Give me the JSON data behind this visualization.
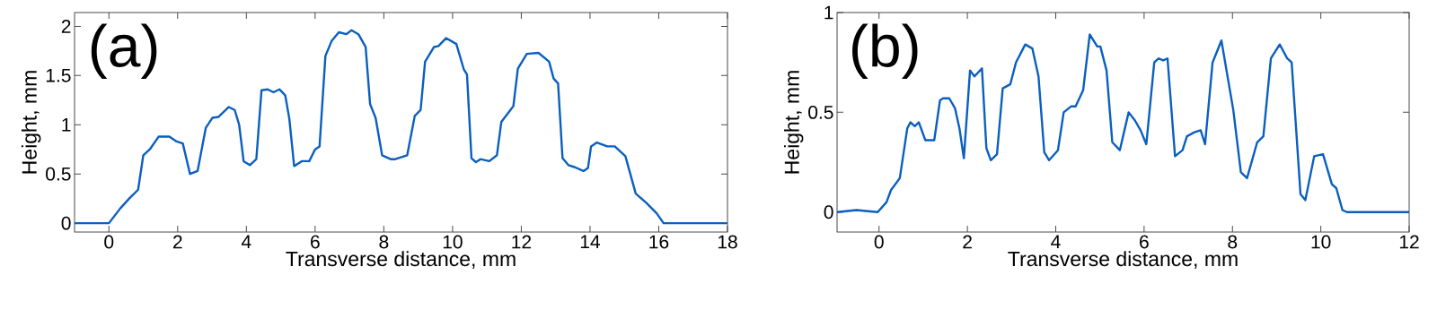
{
  "chart_data": [
    {
      "type": "line",
      "xlabel": "Transverse distance, mm",
      "ylabel": "Height, mm",
      "annotations": [
        "(a)"
      ],
      "xlim": [
        -1,
        18
      ],
      "ylim": [
        -0.09,
        2.14
      ],
      "xticks": [
        0,
        2,
        4,
        6,
        8,
        10,
        12,
        14,
        16,
        18
      ],
      "yticks": [
        0,
        0.5,
        1,
        1.5,
        2
      ],
      "series": [
        {
          "color": "#0a5fbf",
          "x": [
            -1,
            0,
            0.33,
            0.59,
            0.85,
            1.0,
            1.19,
            1.45,
            1.76,
            1.97,
            2.15,
            2.36,
            2.58,
            2.82,
            3.01,
            3.19,
            3.49,
            3.66,
            3.79,
            3.92,
            4.1,
            4.29,
            4.44,
            4.62,
            4.79,
            4.96,
            5.13,
            5.25,
            5.39,
            5.61,
            5.83,
            6.0,
            6.13,
            6.3,
            6.48,
            6.69,
            6.91,
            7.06,
            7.26,
            7.47,
            7.6,
            7.76,
            7.95,
            8.2,
            8.33,
            8.68,
            8.9,
            9.07,
            9.2,
            9.46,
            9.59,
            9.81,
            10.11,
            10.33,
            10.42,
            10.55,
            10.68,
            10.81,
            11.07,
            11.29,
            11.42,
            11.64,
            11.77,
            11.9,
            12.16,
            12.5,
            12.81,
            12.94,
            13.07,
            13.2,
            13.37,
            13.55,
            13.81,
            13.94,
            14.03,
            14.2,
            14.5,
            14.72,
            15.03,
            15.33,
            15.63,
            15.94,
            16.14,
            18
          ],
          "values": [
            0,
            0,
            0.15,
            0.25,
            0.34,
            0.69,
            0.75,
            0.88,
            0.88,
            0.83,
            0.81,
            0.5,
            0.53,
            0.97,
            1.07,
            1.08,
            1.18,
            1.15,
            1.0,
            0.63,
            0.59,
            0.65,
            1.35,
            1.36,
            1.33,
            1.36,
            1.3,
            1.06,
            0.58,
            0.63,
            0.63,
            0.75,
            0.78,
            1.7,
            1.85,
            1.94,
            1.92,
            1.96,
            1.92,
            1.79,
            1.21,
            1.07,
            0.69,
            0.65,
            0.65,
            0.69,
            1.09,
            1.15,
            1.64,
            1.79,
            1.8,
            1.88,
            1.82,
            1.56,
            1.51,
            0.66,
            0.62,
            0.65,
            0.63,
            0.69,
            1.03,
            1.13,
            1.19,
            1.57,
            1.72,
            1.73,
            1.64,
            1.47,
            1.42,
            0.66,
            0.59,
            0.57,
            0.53,
            0.56,
            0.78,
            0.82,
            0.78,
            0.78,
            0.68,
            0.3,
            0.21,
            0.1,
            0,
            0
          ]
        }
      ]
    },
    {
      "type": "line",
      "xlabel": "Transverse distance, mm",
      "ylabel": "Height, mm",
      "annotations": [
        "(b)"
      ],
      "xlim": [
        -0.95,
        12
      ],
      "ylim": [
        -0.1,
        1
      ],
      "xticks": [
        0,
        2,
        4,
        6,
        8,
        10,
        12
      ],
      "yticks": [
        0,
        0.5,
        1
      ],
      "series": [
        {
          "color": "#0a5fbf",
          "x": [
            -0.95,
            -0.51,
            -0.03,
            0.17,
            0.27,
            0.47,
            0.64,
            0.71,
            0.81,
            0.9,
            1.05,
            1.25,
            1.38,
            1.45,
            1.59,
            1.72,
            1.82,
            1.92,
            2.06,
            2.16,
            2.33,
            2.43,
            2.53,
            2.67,
            2.8,
            2.97,
            3.1,
            3.31,
            3.47,
            3.61,
            3.74,
            3.85,
            4.05,
            4.18,
            4.35,
            4.45,
            4.62,
            4.77,
            4.94,
            5.01,
            5.15,
            5.28,
            5.45,
            5.65,
            5.79,
            5.92,
            6.05,
            6.23,
            6.33,
            6.43,
            6.53,
            6.7,
            6.87,
            6.97,
            7.14,
            7.28,
            7.38,
            7.55,
            7.75,
            8.02,
            8.19,
            8.33,
            8.56,
            8.7,
            8.87,
            9.07,
            9.24,
            9.34,
            9.54,
            9.65,
            9.85,
            10.05,
            10.25,
            10.35,
            10.49,
            10.59,
            12
          ],
          "values": [
            0,
            0.01,
            0,
            0.05,
            0.11,
            0.17,
            0.42,
            0.45,
            0.43,
            0.45,
            0.36,
            0.36,
            0.56,
            0.57,
            0.57,
            0.52,
            0.42,
            0.27,
            0.71,
            0.68,
            0.72,
            0.32,
            0.26,
            0.29,
            0.62,
            0.64,
            0.75,
            0.84,
            0.82,
            0.68,
            0.3,
            0.26,
            0.31,
            0.5,
            0.53,
            0.53,
            0.61,
            0.89,
            0.83,
            0.83,
            0.71,
            0.35,
            0.31,
            0.5,
            0.46,
            0.41,
            0.34,
            0.75,
            0.77,
            0.76,
            0.77,
            0.28,
            0.31,
            0.38,
            0.4,
            0.41,
            0.34,
            0.75,
            0.86,
            0.51,
            0.2,
            0.17,
            0.35,
            0.38,
            0.77,
            0.84,
            0.77,
            0.75,
            0.09,
            0.06,
            0.28,
            0.29,
            0.14,
            0.12,
            0.01,
            0,
            0
          ]
        }
      ]
    }
  ]
}
